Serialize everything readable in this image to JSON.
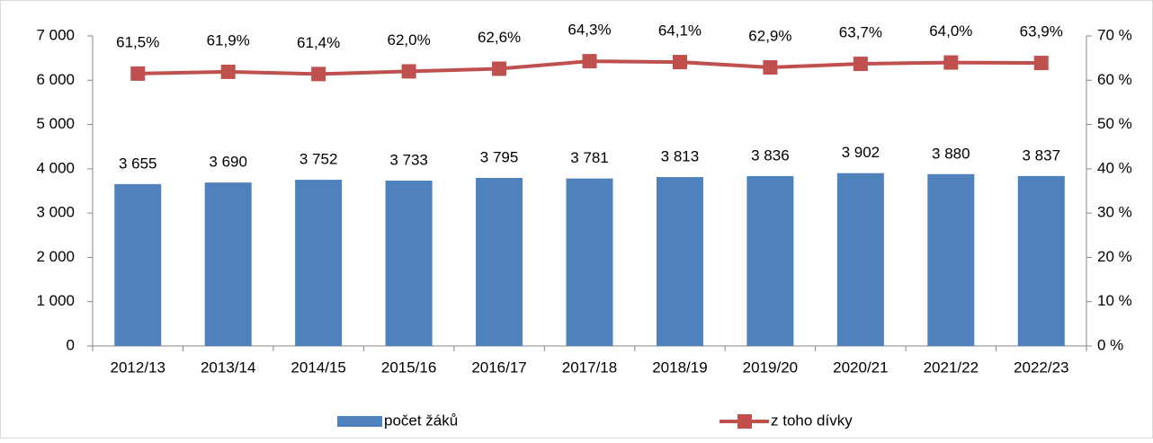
{
  "chart_data": {
    "type": "combo",
    "categories": [
      "2012/13",
      "2013/14",
      "2014/15",
      "2015/16",
      "2016/17",
      "2017/18",
      "2018/19",
      "2019/20",
      "2020/21",
      "2021/22",
      "2022/23"
    ],
    "series": [
      {
        "name": "počet žáků",
        "type": "bar",
        "color": "#4f81bd",
        "values": [
          3655,
          3690,
          3752,
          3733,
          3795,
          3781,
          3813,
          3836,
          3902,
          3880,
          3837
        ],
        "value_labels": [
          "3 655",
          "3 690",
          "3 752",
          "3 733",
          "3 795",
          "3 781",
          "3 813",
          "3 836",
          "3 902",
          "3 880",
          "3 837"
        ]
      },
      {
        "name": "z toho dívky",
        "type": "line",
        "axis": "y2",
        "color": "#c0504d",
        "values": [
          61.5,
          61.9,
          61.4,
          62.0,
          62.6,
          64.3,
          64.1,
          62.9,
          63.7,
          64.0,
          63.9
        ],
        "value_labels": [
          "61,5%",
          "61,9%",
          "61,4%",
          "62,0%",
          "62,6%",
          "64,3%",
          "64,1%",
          "62,9%",
          "63,7%",
          "64,0%",
          "63,9%"
        ]
      }
    ],
    "ylim": [
      0,
      7000
    ],
    "yticks": [
      0,
      {
        "value": 1000,
        "label": "1 000"
      },
      {
        "value": 2000,
        "label": "2 000"
      },
      {
        "value": 3000,
        "label": "3 000"
      },
      {
        "value": 4000,
        "label": "4 000"
      },
      {
        "value": 5000,
        "label": "5 000"
      },
      {
        "value": 6000,
        "label": "6 000"
      },
      {
        "value": 7000,
        "label": "7 000"
      }
    ],
    "y2lim": [
      0,
      70
    ],
    "y2ticks": [
      {
        "value": 0,
        "label": "0 %"
      },
      {
        "value": 10,
        "label": "10 %"
      },
      {
        "value": 20,
        "label": "20 %"
      },
      {
        "value": 30,
        "label": "30 %"
      },
      {
        "value": 40,
        "label": "40 %"
      },
      {
        "value": 50,
        "label": "50 %"
      },
      {
        "value": 60,
        "label": "60 %"
      },
      {
        "value": 70,
        "label": "70 %"
      }
    ],
    "legend": "bottom"
  }
}
